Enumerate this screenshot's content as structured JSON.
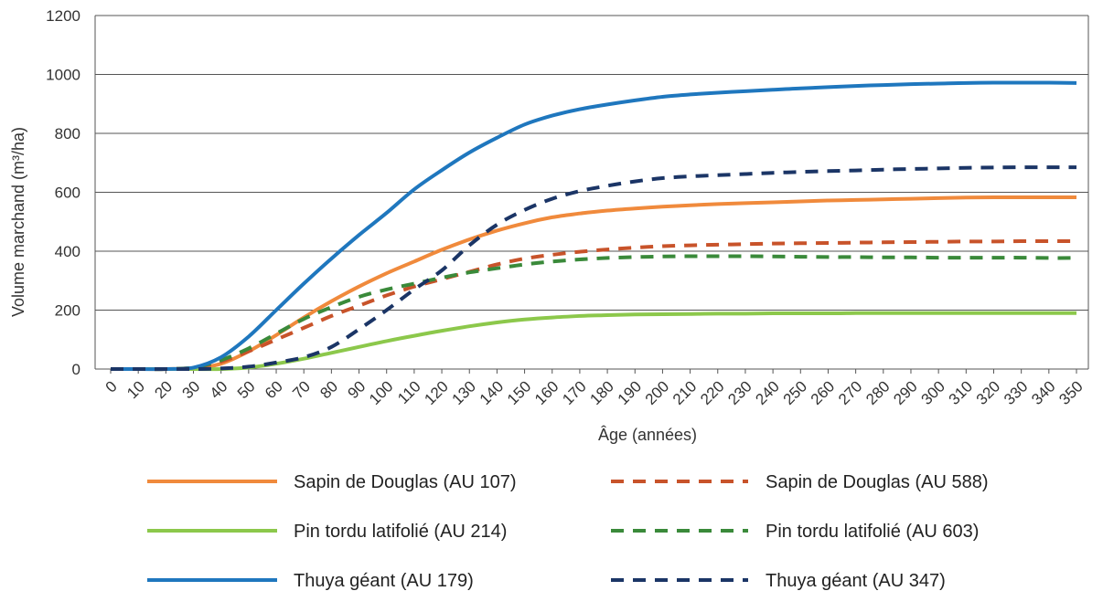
{
  "chart_data": {
    "type": "line",
    "xlabel": "Âge (années)",
    "ylabel": "Volume marchand (m³/ha)",
    "ylim": [
      0,
      1200
    ],
    "yticks": [
      0,
      200,
      400,
      600,
      800,
      1000,
      1200
    ],
    "xlim": [
      0,
      350
    ],
    "xticks": [
      0,
      10,
      20,
      30,
      40,
      50,
      60,
      70,
      80,
      90,
      100,
      110,
      120,
      130,
      140,
      150,
      160,
      170,
      180,
      190,
      200,
      210,
      220,
      230,
      240,
      250,
      260,
      270,
      280,
      290,
      300,
      310,
      320,
      330,
      340,
      350
    ],
    "grid": "horizontal",
    "legend_position": "bottom",
    "series": [
      {
        "name": "Sapin de Douglas (AU 107)",
        "color": "#F08A3C",
        "style": "solid",
        "x": [
          0,
          10,
          20,
          30,
          40,
          50,
          60,
          70,
          80,
          90,
          100,
          110,
          120,
          130,
          140,
          150,
          160,
          170,
          180,
          190,
          200,
          210,
          220,
          230,
          240,
          250,
          260,
          270,
          280,
          290,
          300,
          310,
          320,
          330,
          340,
          350
        ],
        "values": [
          0,
          0,
          0,
          3,
          18,
          60,
          115,
          175,
          230,
          280,
          325,
          365,
          405,
          440,
          470,
          495,
          515,
          528,
          538,
          545,
          551,
          556,
          560,
          563,
          566,
          569,
          572,
          574,
          576,
          578,
          580,
          582,
          583,
          583,
          583,
          583
        ]
      },
      {
        "name": "Sapin de Douglas (AU 588)",
        "color": "#C8532A",
        "style": "dashed",
        "x": [
          0,
          10,
          20,
          30,
          40,
          50,
          60,
          70,
          80,
          90,
          100,
          110,
          120,
          130,
          140,
          150,
          160,
          170,
          180,
          190,
          200,
          210,
          220,
          230,
          240,
          250,
          260,
          270,
          280,
          290,
          300,
          310,
          320,
          330,
          340,
          350
        ],
        "values": [
          0,
          0,
          0,
          5,
          25,
          60,
          100,
          140,
          180,
          215,
          250,
          280,
          305,
          330,
          355,
          375,
          388,
          398,
          406,
          412,
          417,
          420,
          422,
          424,
          426,
          427,
          428,
          429,
          430,
          431,
          432,
          433,
          433,
          434,
          434,
          434
        ]
      },
      {
        "name": "Pin tordu latifolié (AU 214)",
        "color": "#8CC84B",
        "style": "solid",
        "x": [
          0,
          10,
          20,
          30,
          40,
          50,
          60,
          70,
          80,
          90,
          100,
          110,
          120,
          130,
          140,
          150,
          160,
          170,
          180,
          190,
          200,
          210,
          220,
          230,
          240,
          250,
          260,
          270,
          280,
          290,
          300,
          310,
          320,
          330,
          340,
          350
        ],
        "values": [
          0,
          0,
          0,
          0,
          0,
          5,
          18,
          35,
          55,
          75,
          95,
          113,
          130,
          145,
          158,
          168,
          175,
          180,
          183,
          185,
          186,
          187,
          188,
          188,
          189,
          189,
          189,
          190,
          190,
          190,
          190,
          190,
          190,
          190,
          190,
          190
        ]
      },
      {
        "name": "Pin tordu latifolié (AU 603)",
        "color": "#3A8A3A",
        "style": "dashed",
        "x": [
          0,
          10,
          20,
          30,
          40,
          50,
          60,
          70,
          80,
          90,
          100,
          110,
          120,
          130,
          140,
          150,
          160,
          170,
          180,
          190,
          200,
          210,
          220,
          230,
          240,
          250,
          260,
          270,
          280,
          290,
          300,
          310,
          320,
          330,
          340,
          350
        ],
        "values": [
          0,
          0,
          0,
          5,
          30,
          70,
          120,
          170,
          210,
          245,
          270,
          290,
          310,
          328,
          342,
          355,
          365,
          372,
          377,
          380,
          382,
          383,
          383,
          383,
          382,
          381,
          380,
          380,
          379,
          379,
          378,
          378,
          378,
          378,
          377,
          377
        ]
      },
      {
        "name": "Thuya géant (AU 179)",
        "color": "#1F77BE",
        "style": "solid",
        "x": [
          0,
          10,
          20,
          30,
          40,
          50,
          60,
          70,
          80,
          90,
          100,
          110,
          120,
          130,
          140,
          150,
          160,
          170,
          180,
          190,
          200,
          210,
          220,
          230,
          240,
          250,
          260,
          270,
          280,
          290,
          300,
          310,
          320,
          330,
          340,
          350
        ],
        "values": [
          0,
          0,
          0,
          5,
          40,
          110,
          200,
          290,
          375,
          455,
          530,
          610,
          675,
          735,
          785,
          830,
          860,
          882,
          898,
          912,
          924,
          932,
          938,
          943,
          948,
          953,
          957,
          961,
          964,
          967,
          969,
          971,
          972,
          972,
          972,
          971
        ]
      },
      {
        "name": "Thuya géant (AU 347)",
        "color": "#1B3566",
        "style": "dashed",
        "x": [
          0,
          10,
          20,
          30,
          40,
          50,
          60,
          70,
          80,
          90,
          100,
          110,
          120,
          130,
          140,
          150,
          160,
          170,
          180,
          190,
          200,
          210,
          220,
          230,
          240,
          250,
          260,
          270,
          280,
          290,
          300,
          310,
          320,
          330,
          340,
          350
        ],
        "values": [
          0,
          0,
          0,
          0,
          2,
          8,
          22,
          40,
          75,
          135,
          200,
          270,
          335,
          420,
          490,
          540,
          578,
          604,
          622,
          637,
          648,
          654,
          658,
          662,
          666,
          669,
          672,
          674,
          677,
          679,
          681,
          683,
          684,
          685,
          685,
          685
        ]
      }
    ]
  }
}
